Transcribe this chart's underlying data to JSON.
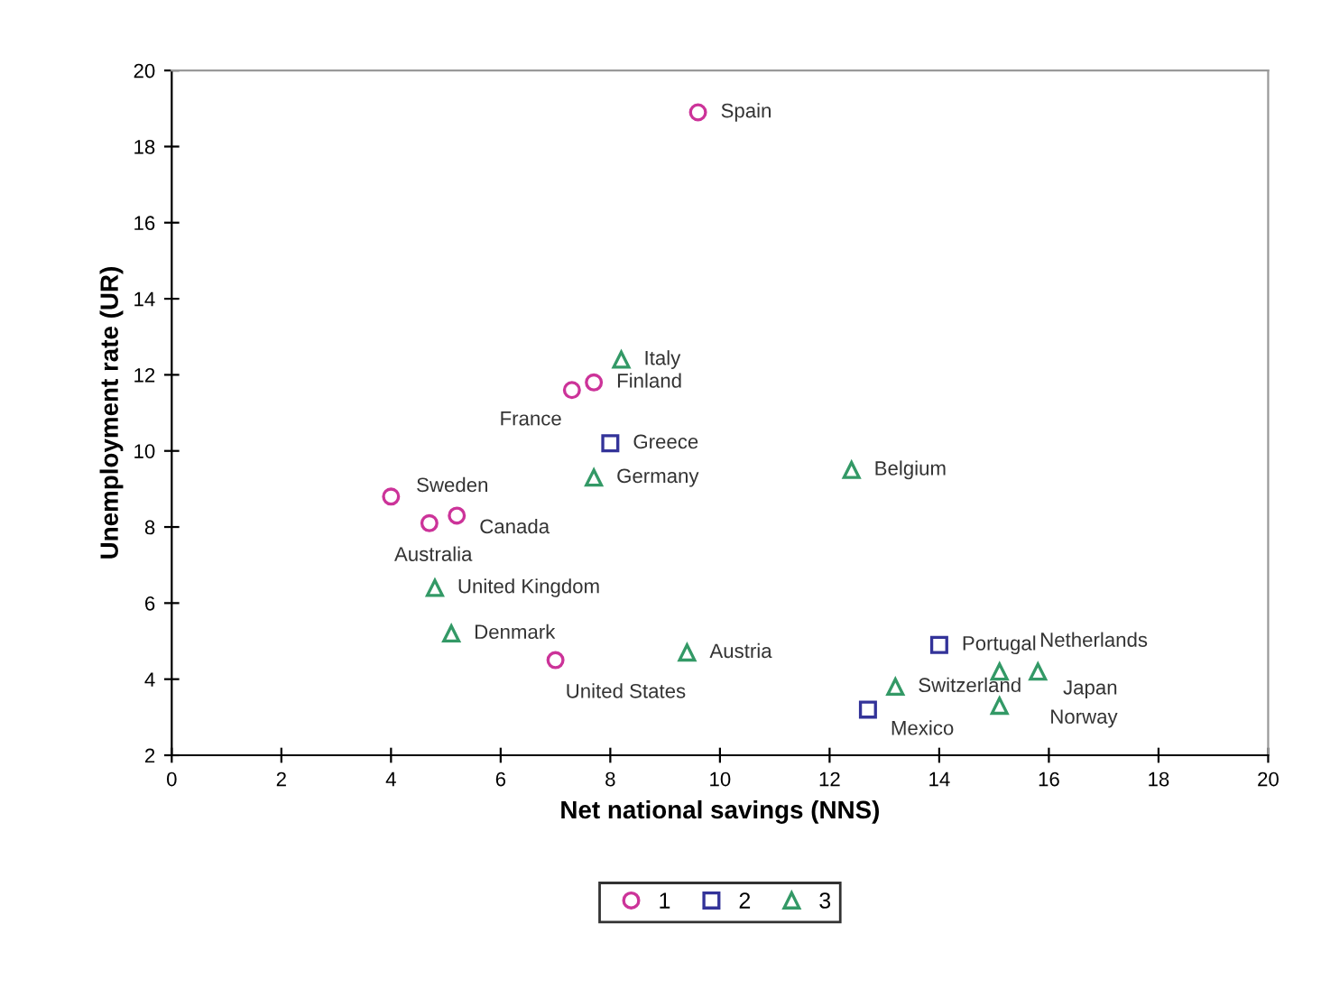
{
  "chart_data": {
    "type": "scatter",
    "xlabel": "Net national savings (NNS)",
    "ylabel": "Unemployment rate (UR)",
    "xlim": [
      0,
      20
    ],
    "ylim": [
      2,
      20
    ],
    "xticks": [
      0,
      2,
      4,
      6,
      8,
      10,
      12,
      14,
      16,
      18,
      20
    ],
    "yticks": [
      2,
      4,
      6,
      8,
      10,
      12,
      14,
      16,
      18,
      20
    ],
    "grid": false,
    "legend": "bottom",
    "series": [
      {
        "name": "1",
        "color": "#cc3399",
        "marker": "circle",
        "x": [
          9.6,
          7.3,
          7.7,
          4.0,
          4.7,
          5.2,
          7.0
        ],
        "values": [
          18.9,
          11.6,
          11.8,
          8.8,
          8.1,
          8.3,
          4.5
        ]
      },
      {
        "name": "2",
        "color": "#333399",
        "marker": "square",
        "x": [
          8.0,
          14.0,
          12.7
        ],
        "values": [
          10.2,
          4.9,
          3.2
        ]
      },
      {
        "name": "3",
        "color": "#339966",
        "marker": "triangle",
        "x": [
          8.2,
          7.7,
          4.8,
          5.1,
          9.4,
          12.4,
          13.2,
          15.1,
          15.8,
          15.1
        ],
        "values": [
          12.4,
          9.3,
          6.4,
          5.2,
          4.7,
          9.5,
          3.8,
          4.2,
          4.2,
          3.3
        ]
      }
    ],
    "annotations": [
      {
        "text": "Spain",
        "x": 9.6,
        "y": 18.9
      },
      {
        "text": "France",
        "x": 7.3,
        "y": 11.6
      },
      {
        "text": "Finland",
        "x": 7.7,
        "y": 11.8
      },
      {
        "text": "Sweden",
        "x": 4.0,
        "y": 8.8
      },
      {
        "text": "Australia",
        "x": 4.7,
        "y": 8.1
      },
      {
        "text": "Canada",
        "x": 5.2,
        "y": 8.3
      },
      {
        "text": "United States",
        "x": 7.0,
        "y": 4.5
      },
      {
        "text": "Greece",
        "x": 8.0,
        "y": 10.2
      },
      {
        "text": "Portugal",
        "x": 14.0,
        "y": 4.9
      },
      {
        "text": "Mexico",
        "x": 12.7,
        "y": 3.2
      },
      {
        "text": "Italy",
        "x": 8.2,
        "y": 12.4
      },
      {
        "text": "Germany",
        "x": 7.7,
        "y": 9.3
      },
      {
        "text": "United Kingdom",
        "x": 4.8,
        "y": 6.4
      },
      {
        "text": "Denmark",
        "x": 5.1,
        "y": 5.2
      },
      {
        "text": "Austria",
        "x": 9.4,
        "y": 4.7
      },
      {
        "text": "Belgium",
        "x": 12.4,
        "y": 9.5
      },
      {
        "text": "Switzerland",
        "x": 13.2,
        "y": 3.8
      },
      {
        "text": "Japan",
        "x": 15.8,
        "y": 4.2
      },
      {
        "text": "Netherlands",
        "x": 15.1,
        "y": 4.2
      },
      {
        "text": "Norway",
        "x": 15.1,
        "y": 3.3
      }
    ]
  }
}
